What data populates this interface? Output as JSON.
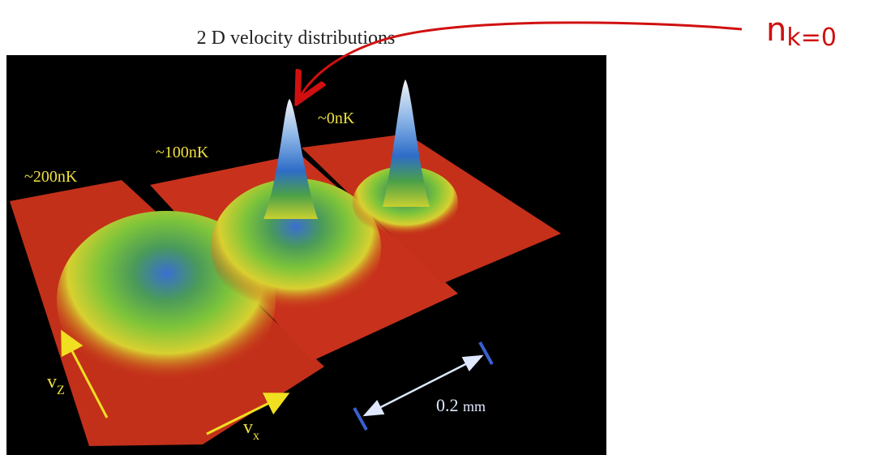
{
  "figure": {
    "title": "2 D velocity distributions",
    "temperature_labels": [
      "~200nK",
      "~100nK",
      "~0nK"
    ],
    "axis_labels": [
      {
        "symbol": "v",
        "subscript": "Z"
      },
      {
        "symbol": "v",
        "subscript": "x"
      }
    ],
    "scale_bar": {
      "value": "0.2",
      "unit": "mm"
    }
  },
  "annotation": {
    "symbol": "n",
    "subscript": "k=0"
  }
}
